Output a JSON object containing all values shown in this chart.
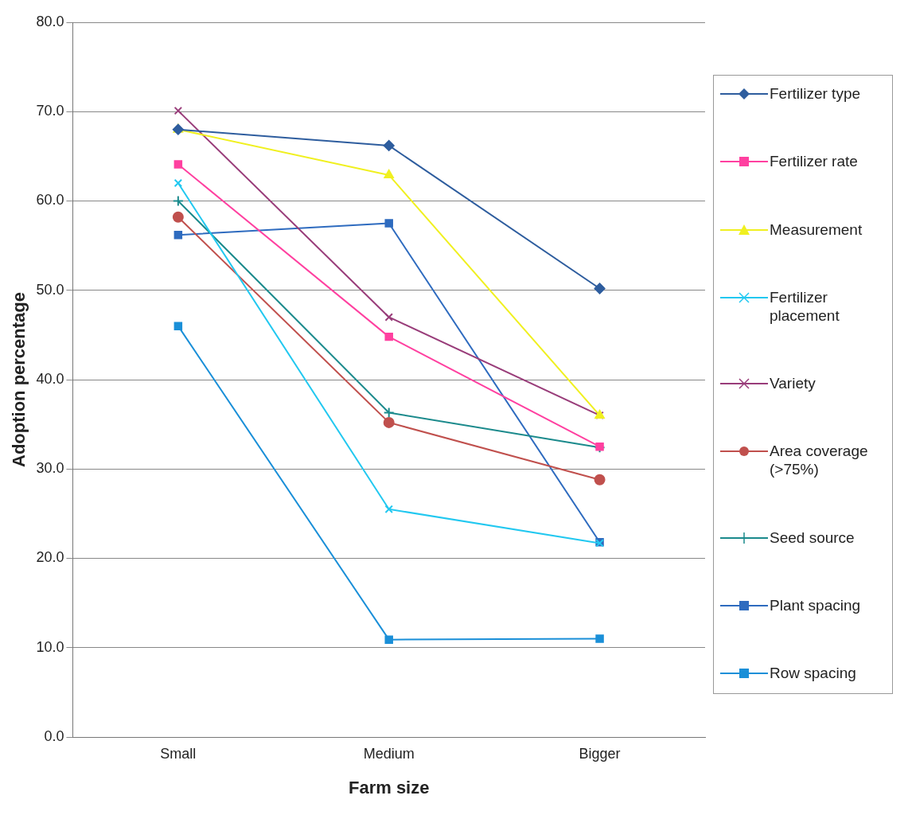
{
  "chart_data": {
    "type": "line",
    "xlabel": "Farm size",
    "ylabel": "Adoption percentage",
    "categories": [
      "Small",
      "Medium",
      "Bigger"
    ],
    "ylim": [
      0,
      80
    ],
    "yticks": [
      {
        "value": 0,
        "label": "0.0"
      },
      {
        "value": 10,
        "label": "10.0"
      },
      {
        "value": 20,
        "label": "20.0"
      },
      {
        "value": 30,
        "label": "30.0"
      },
      {
        "value": 40,
        "label": "40.0"
      },
      {
        "value": 50,
        "label": "50.0"
      },
      {
        "value": 60,
        "label": "60.0"
      },
      {
        "value": 70,
        "label": "70.0"
      },
      {
        "value": 80,
        "label": "80.0"
      }
    ],
    "grid": "y",
    "legend": "right",
    "line_style": "solid",
    "series": [
      {
        "name": "Fertilizer type",
        "color": "#2e5d9e",
        "marker": "diamond",
        "values": [
          68.0,
          66.2,
          50.2
        ]
      },
      {
        "name": "Fertilizer rate",
        "color": "#ff40a0",
        "marker": "square",
        "values": [
          64.1,
          44.8,
          32.5
        ]
      },
      {
        "name": "Measurement",
        "color": "#f0f020",
        "marker": "triangle",
        "values": [
          68.0,
          62.9,
          36.0
        ]
      },
      {
        "name": "Fertilizer placement",
        "color": "#22c8f0",
        "marker": "cross",
        "values": [
          62.0,
          25.5,
          21.7
        ]
      },
      {
        "name": "Variety",
        "color": "#993d7a",
        "marker": "cross",
        "values": [
          70.1,
          47.0,
          36.0
        ]
      },
      {
        "name": "Area coverage (>75%)",
        "color": "#c0504d",
        "marker": "circle",
        "values": [
          58.2,
          35.2,
          28.8
        ]
      },
      {
        "name": "Seed source",
        "color": "#1b8a8c",
        "marker": "plus",
        "values": [
          60.0,
          36.3,
          32.4
        ]
      },
      {
        "name": "Plant spacing",
        "color": "#2e6bbf",
        "marker": "square",
        "values": [
          56.2,
          57.5,
          21.8
        ]
      },
      {
        "name": "Row spacing",
        "color": "#1a8fd8",
        "marker": "square",
        "values": [
          46.0,
          10.9,
          11.0
        ]
      }
    ]
  }
}
